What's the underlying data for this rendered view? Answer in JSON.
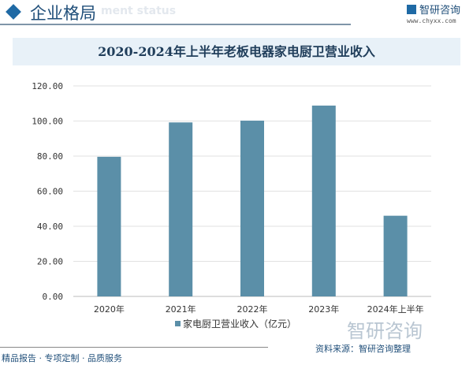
{
  "header": {
    "title": "企业格局",
    "subtitle": "ment status",
    "brand": "智研咨询",
    "url": "www.chyxx.com"
  },
  "footer": {
    "slogan": "精品报告 · 专项定制 · 品质服务",
    "source": "资料来源：智研咨询整理",
    "watermark": "智研咨询"
  },
  "chart_data": {
    "type": "bar",
    "title": "2020-2024年上半年老板电器家电厨卫营业收入",
    "categories": [
      "2020年",
      "2021年",
      "2022年",
      "2023年",
      "2024年上半年"
    ],
    "series": [
      {
        "name": "家电厨卫营业收入（亿元）",
        "values": [
          79.6,
          99.2,
          100.2,
          108.8,
          46.0
        ],
        "color": "#5b8fa8"
      }
    ],
    "ylim": [
      0,
      120
    ],
    "yticks": [
      "0.00",
      "20.00",
      "40.00",
      "60.00",
      "80.00",
      "100.00",
      "120.00"
    ],
    "grid": true,
    "legend": "bottom"
  }
}
